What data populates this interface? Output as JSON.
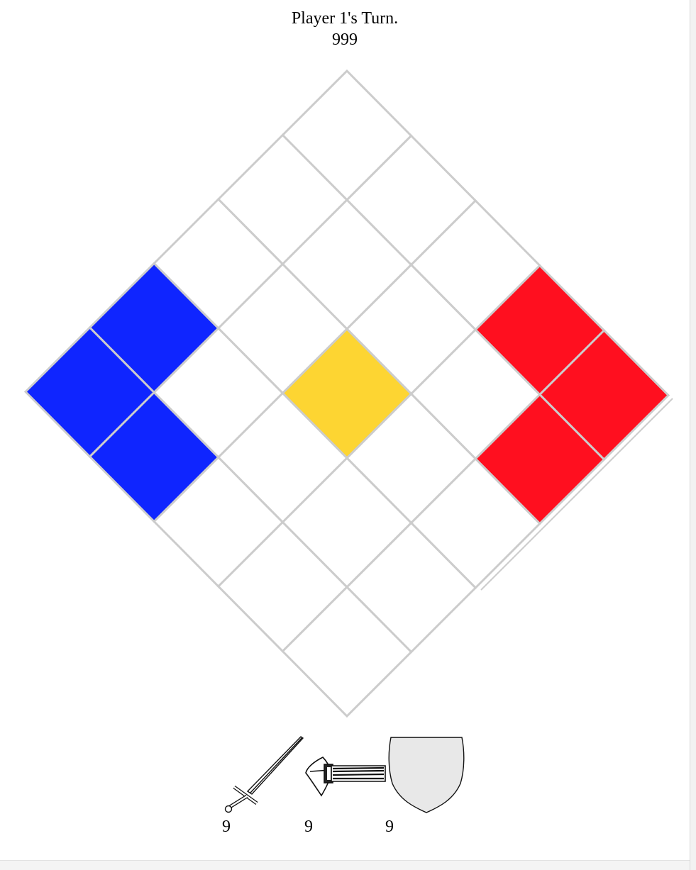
{
  "status": {
    "turn_text": "Player 1's Turn.",
    "counter": "999"
  },
  "colors": {
    "player1": "#ff0f1f",
    "player2": "#0f25ff",
    "center": "#fdd532",
    "empty": "#ffffff",
    "grid_line": "#cccccc",
    "shield_fill": "#e8e8e8"
  },
  "board": {
    "size": 5,
    "grid": [
      [
        "empty",
        "empty",
        "empty",
        "player1",
        "player1"
      ],
      [
        "empty",
        "empty",
        "empty",
        "empty",
        "player1"
      ],
      [
        "empty",
        "empty",
        "center",
        "empty",
        "empty"
      ],
      [
        "player2",
        "empty",
        "empty",
        "empty",
        "empty"
      ],
      [
        "player2",
        "player2",
        "empty",
        "empty",
        "empty"
      ]
    ]
  },
  "inventory": [
    {
      "icon": "sword-icon",
      "count": "9"
    },
    {
      "icon": "axe-icon",
      "count": "9"
    },
    {
      "icon": "shield-icon",
      "count": "9"
    }
  ]
}
